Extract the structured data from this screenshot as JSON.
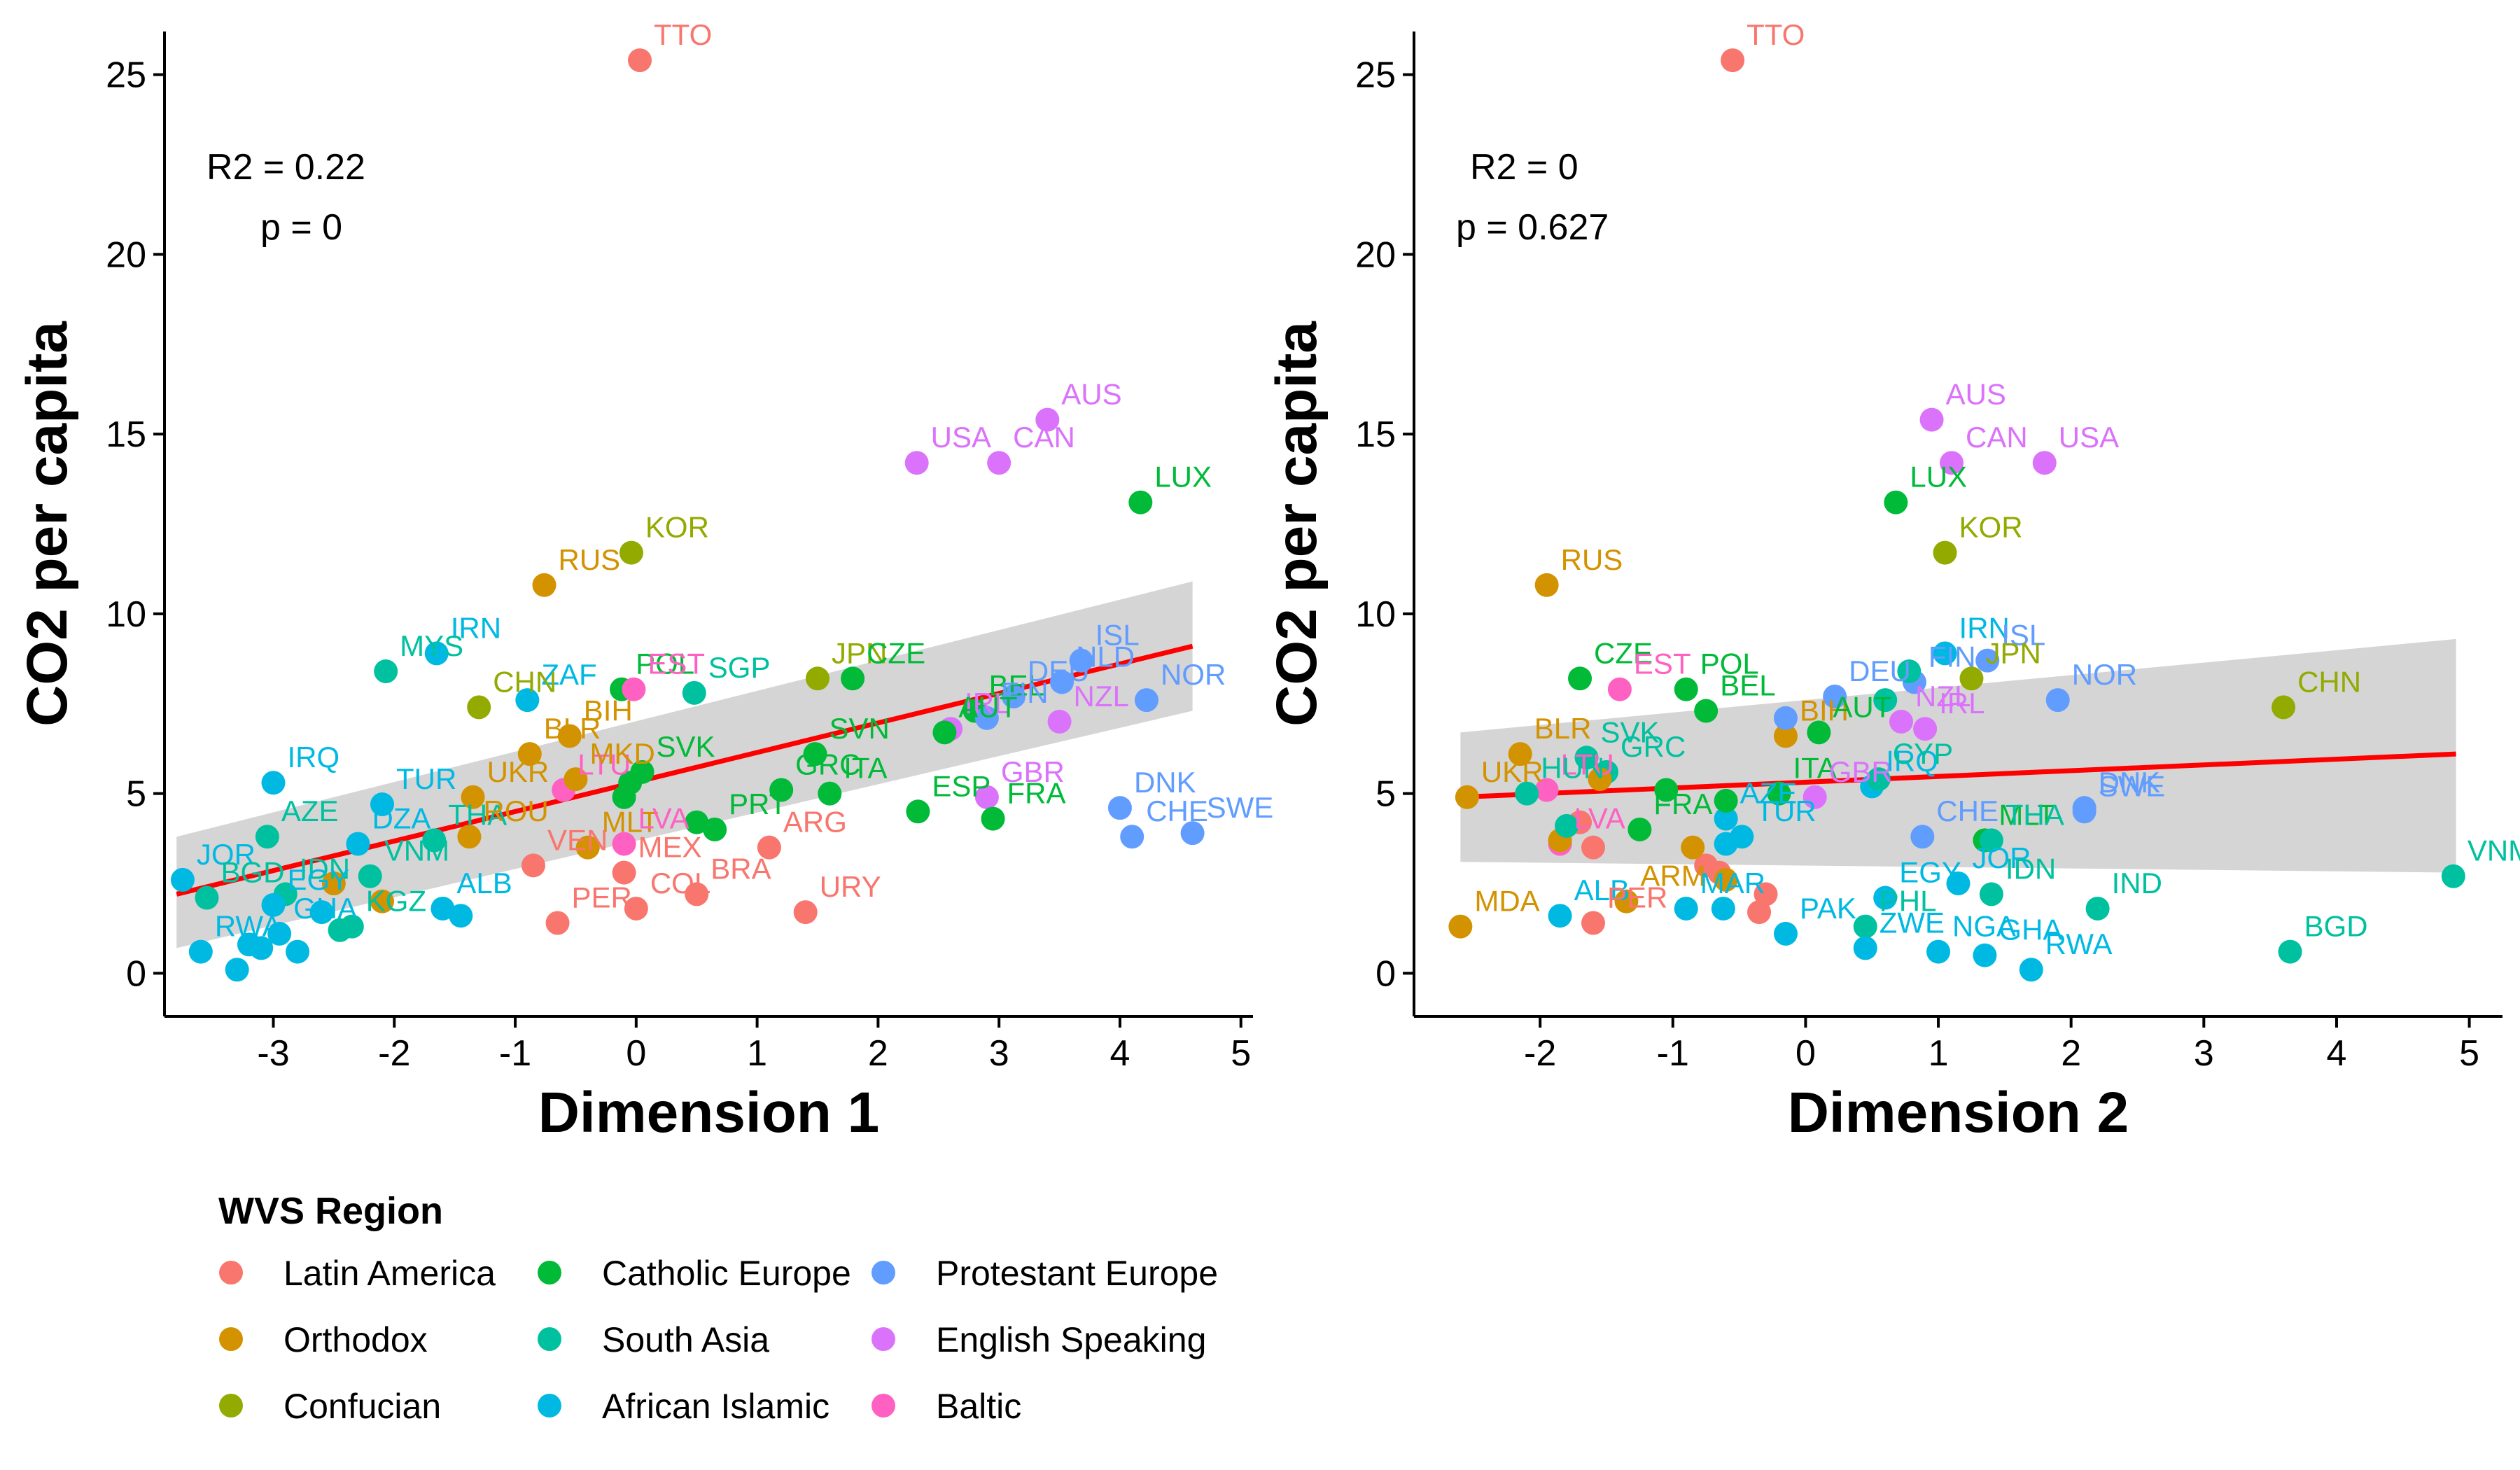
{
  "regions": [
    {
      "name": "Latin America",
      "color": "#F8766D"
    },
    {
      "name": "Orthodox",
      "color": "#D39200"
    },
    {
      "name": "Confucian",
      "color": "#93AA00"
    },
    {
      "name": "Catholic Europe",
      "color": "#00BA38"
    },
    {
      "name": "South Asia",
      "color": "#00C19F"
    },
    {
      "name": "African Islamic",
      "color": "#00B9E3"
    },
    {
      "name": "Protestant Europe",
      "color": "#619CFF"
    },
    {
      "name": "English Speaking",
      "color": "#DB72FB"
    },
    {
      "name": "Baltic",
      "color": "#FF61C3"
    }
  ],
  "legend": {
    "title": "WVS Region",
    "position": "bottom-left"
  },
  "chart_data": [
    {
      "type": "scatter",
      "xlabel": "Dimension 1",
      "ylabel": "CO2 per capita",
      "xlim": [
        -3.9,
        5.1
      ],
      "ylim": [
        -1.2,
        26.2
      ],
      "xticks": [
        -3,
        -2,
        -1,
        0,
        1,
        2,
        3,
        4,
        5
      ],
      "yticks": [
        0,
        5,
        10,
        15,
        20,
        25
      ],
      "stats": {
        "r2_label": "R2 = ",
        "r2": "0.22",
        "p_label": "p = ",
        "p": "0"
      },
      "trend": {
        "x": [
          -3.8,
          4.6
        ],
        "y": [
          2.2,
          9.1
        ],
        "band_upper": [
          3.8,
          10.9
        ],
        "band_lower": [
          0.7,
          7.3
        ]
      },
      "points": [
        {
          "label": "TTO",
          "region": 0,
          "x": 0.03,
          "y": 25.4
        },
        {
          "label": "USA",
          "region": 7,
          "x": 2.32,
          "y": 14.2
        },
        {
          "label": "AUS",
          "region": 7,
          "x": 3.4,
          "y": 15.4
        },
        {
          "label": "CAN",
          "region": 7,
          "x": 3.0,
          "y": 14.2
        },
        {
          "label": "LUX",
          "region": 3,
          "x": 4.17,
          "y": 13.1
        },
        {
          "label": "KOR",
          "region": 2,
          "x": -0.04,
          "y": 11.7
        },
        {
          "label": "RUS",
          "region": 1,
          "x": -0.76,
          "y": 10.8
        },
        {
          "label": "IRN",
          "region": 5,
          "x": -1.65,
          "y": 8.9
        },
        {
          "label": "MYS",
          "region": 4,
          "x": -2.07,
          "y": 8.4
        },
        {
          "label": "ZAF",
          "region": 5,
          "x": -0.9,
          "y": 7.6
        },
        {
          "label": "POL",
          "region": 3,
          "x": -0.12,
          "y": 7.9
        },
        {
          "label": "SGP",
          "region": 4,
          "x": 0.48,
          "y": 7.8
        },
        {
          "label": "EST",
          "region": 8,
          "x": -0.02,
          "y": 7.9
        },
        {
          "label": "JPN",
          "region": 2,
          "x": 1.5,
          "y": 8.2
        },
        {
          "label": "CZE",
          "region": 3,
          "x": 1.79,
          "y": 8.2
        },
        {
          "label": "BEL",
          "region": 3,
          "x": 2.8,
          "y": 7.3
        },
        {
          "label": "DEU",
          "region": 6,
          "x": 3.12,
          "y": 7.7
        },
        {
          "label": "ISL",
          "region": 6,
          "x": 3.68,
          "y": 8.7
        },
        {
          "label": "NLD",
          "region": 6,
          "x": 3.52,
          "y": 8.1
        },
        {
          "label": "NOR",
          "region": 6,
          "x": 4.22,
          "y": 7.6
        },
        {
          "label": "NZL",
          "region": 7,
          "x": 3.5,
          "y": 7.0
        },
        {
          "label": "FIN",
          "region": 6,
          "x": 2.9,
          "y": 7.1
        },
        {
          "label": "IRL",
          "region": 7,
          "x": 2.6,
          "y": 6.8
        },
        {
          "label": "AUT",
          "region": 3,
          "x": 2.55,
          "y": 6.7
        },
        {
          "label": "SVN",
          "region": 3,
          "x": 1.48,
          "y": 6.1
        },
        {
          "label": "CHN",
          "region": 2,
          "x": -1.3,
          "y": 7.4
        },
        {
          "label": "BLR",
          "region": 1,
          "x": -0.88,
          "y": 6.1
        },
        {
          "label": "BIH",
          "region": 1,
          "x": -0.55,
          "y": 6.6
        },
        {
          "label": "TUR",
          "region": 5,
          "x": -2.1,
          "y": 4.7
        },
        {
          "label": "UKR",
          "region": 1,
          "x": -1.35,
          "y": 4.9
        },
        {
          "label": "LTU",
          "region": 8,
          "x": -0.6,
          "y": 5.1
        },
        {
          "label": "SVK",
          "region": 3,
          "x": 0.05,
          "y": 5.6
        },
        {
          "label": "MKD",
          "region": 1,
          "x": -0.5,
          "y": 5.4
        },
        {
          "label": "IRQ",
          "region": 5,
          "x": -3.0,
          "y": 5.3
        },
        {
          "label": "DZA",
          "region": 5,
          "x": -2.3,
          "y": 3.6
        },
        {
          "label": "AZE",
          "region": 4,
          "x": -3.05,
          "y": 3.8
        },
        {
          "label": "THA",
          "region": 4,
          "x": -1.67,
          "y": 3.7
        },
        {
          "label": "VNM",
          "region": 4,
          "x": -2.2,
          "y": 2.7
        },
        {
          "label": "MLT",
          "region": 1,
          "x": -0.4,
          "y": 3.5
        },
        {
          "label": "ROU",
          "region": 1,
          "x": -1.38,
          "y": 3.8
        },
        {
          "label": "GRC",
          "region": 3,
          "x": 1.2,
          "y": 5.1
        },
        {
          "label": "ITA",
          "region": 3,
          "x": 1.6,
          "y": 5.0
        },
        {
          "label": "GBR",
          "region": 7,
          "x": 2.9,
          "y": 4.9
        },
        {
          "label": "DNK",
          "region": 6,
          "x": 4.0,
          "y": 4.6
        },
        {
          "label": "SWE",
          "region": 6,
          "x": 4.6,
          "y": 3.9
        },
        {
          "label": "CHE",
          "region": 6,
          "x": 4.1,
          "y": 3.8
        },
        {
          "label": "ESP",
          "region": 3,
          "x": 2.33,
          "y": 4.5
        },
        {
          "label": "FRA",
          "region": 3,
          "x": 2.95,
          "y": 4.3
        },
        {
          "label": "PRT",
          "region": 3,
          "x": 0.65,
          "y": 4.0
        },
        {
          "label": "ARG",
          "region": 0,
          "x": 1.1,
          "y": 3.5
        },
        {
          "label": "LVA",
          "region": 8,
          "x": -0.1,
          "y": 3.6
        },
        {
          "label": "JOR",
          "region": 5,
          "x": -3.75,
          "y": 2.6
        },
        {
          "label": "IDN",
          "region": 4,
          "x": -2.9,
          "y": 2.2
        },
        {
          "label": "KGZ",
          "region": 4,
          "x": -2.35,
          "y": 1.3
        },
        {
          "label": "BGD",
          "region": 4,
          "x": -3.55,
          "y": 2.1
        },
        {
          "label": "EGY",
          "region": 5,
          "x": -3.0,
          "y": 1.9
        },
        {
          "label": "VEN",
          "region": 0,
          "x": -0.85,
          "y": 3.0
        },
        {
          "label": "MEX",
          "region": 0,
          "x": -0.1,
          "y": 2.8
        },
        {
          "label": "BRA",
          "region": 0,
          "x": 0.5,
          "y": 2.2
        },
        {
          "label": "COL",
          "region": 0,
          "x": 0.0,
          "y": 1.8
        },
        {
          "label": "PER",
          "region": 0,
          "x": -0.65,
          "y": 1.4
        },
        {
          "label": "URY",
          "region": 0,
          "x": 1.4,
          "y": 1.7
        },
        {
          "label": "ALB",
          "region": 5,
          "x": -1.6,
          "y": 1.8
        },
        {
          "label": "RWA",
          "region": 5,
          "x": -3.6,
          "y": 0.6
        },
        {
          "label": "GHA",
          "region": 5,
          "x": -2.95,
          "y": 1.1
        },
        {
          "label": "",
          "region": 4,
          "x": -2.45,
          "y": 1.2
        },
        {
          "label": "",
          "region": 5,
          "x": -2.6,
          "y": 1.7
        },
        {
          "label": "",
          "region": 5,
          "x": -1.45,
          "y": 1.6
        },
        {
          "label": "",
          "region": 5,
          "x": -3.2,
          "y": 0.8
        },
        {
          "label": "",
          "region": 5,
          "x": -3.1,
          "y": 0.7
        },
        {
          "label": "",
          "region": 5,
          "x": -2.8,
          "y": 0.6
        },
        {
          "label": "",
          "region": 5,
          "x": -3.3,
          "y": 0.1
        },
        {
          "label": "",
          "region": 1,
          "x": -2.5,
          "y": 2.5
        },
        {
          "label": "",
          "region": 1,
          "x": -2.1,
          "y": 2.0
        },
        {
          "label": "",
          "region": 3,
          "x": -0.05,
          "y": 5.3
        },
        {
          "label": "",
          "region": 3,
          "x": -0.1,
          "y": 4.9
        },
        {
          "label": "",
          "region": 3,
          "x": 0.5,
          "y": 4.2
        }
      ]
    },
    {
      "type": "scatter",
      "xlabel": "Dimension 2",
      "ylabel": "CO2 per capita",
      "xlim": [
        -2.95,
        5.25
      ],
      "ylim": [
        -1.2,
        26.2
      ],
      "xticks": [
        -2,
        -1,
        0,
        1,
        2,
        3,
        4,
        5
      ],
      "yticks": [
        0,
        5,
        10,
        15,
        20,
        25
      ],
      "stats": {
        "r2_label": "R2 = ",
        "r2": "0",
        "p_label": "p = ",
        "p": "0.627"
      },
      "trend": {
        "x": [
          -2.6,
          4.9
        ],
        "y": [
          4.9,
          6.1
        ],
        "band_upper": [
          6.7,
          9.3
        ],
        "band_lower": [
          3.1,
          2.8
        ]
      },
      "points": [
        {
          "label": "TTO",
          "region": 0,
          "x": -0.55,
          "y": 25.4
        },
        {
          "label": "AUS",
          "region": 7,
          "x": 0.95,
          "y": 15.4
        },
        {
          "label": "CAN",
          "region": 7,
          "x": 1.1,
          "y": 14.2
        },
        {
          "label": "USA",
          "region": 7,
          "x": 1.8,
          "y": 14.2
        },
        {
          "label": "LUX",
          "region": 3,
          "x": 0.68,
          "y": 13.1
        },
        {
          "label": "KOR",
          "region": 2,
          "x": 1.05,
          "y": 11.7
        },
        {
          "label": "RUS",
          "region": 1,
          "x": -1.95,
          "y": 10.8
        },
        {
          "label": "IRN",
          "region": 5,
          "x": 1.05,
          "y": 8.9
        },
        {
          "label": "ISL",
          "region": 6,
          "x": 1.37,
          "y": 8.7
        },
        {
          "label": "CZE",
          "region": 3,
          "x": -1.7,
          "y": 8.2
        },
        {
          "label": "POL",
          "region": 3,
          "x": -0.9,
          "y": 7.9
        },
        {
          "label": "EST",
          "region": 8,
          "x": -1.4,
          "y": 7.9
        },
        {
          "label": "FIN",
          "region": 6,
          "x": 0.82,
          "y": 8.1
        },
        {
          "label": "DEU",
          "region": 6,
          "x": 0.22,
          "y": 7.7
        },
        {
          "label": "JPN",
          "region": 2,
          "x": 1.25,
          "y": 8.2
        },
        {
          "label": "NOR",
          "region": 6,
          "x": 1.9,
          "y": 7.6
        },
        {
          "label": "BEL",
          "region": 3,
          "x": -0.75,
          "y": 7.3
        },
        {
          "label": "NZL",
          "region": 7,
          "x": 0.72,
          "y": 7.0
        },
        {
          "label": "IRL",
          "region": 7,
          "x": 0.9,
          "y": 6.8
        },
        {
          "label": "CHN",
          "region": 2,
          "x": 3.6,
          "y": 7.4
        },
        {
          "label": "BLR",
          "region": 1,
          "x": -2.15,
          "y": 6.1
        },
        {
          "label": "SVK",
          "region": 4,
          "x": -1.65,
          "y": 6.0
        },
        {
          "label": "BIH",
          "region": 1,
          "x": -0.15,
          "y": 6.6
        },
        {
          "label": "AUT",
          "region": 3,
          "x": 0.1,
          "y": 6.7
        },
        {
          "label": "GRC",
          "region": 4,
          "x": -1.5,
          "y": 5.6
        },
        {
          "label": "UKR",
          "region": 1,
          "x": -2.55,
          "y": 4.9
        },
        {
          "label": "LTU",
          "region": 8,
          "x": -1.95,
          "y": 5.1
        },
        {
          "label": "HUN",
          "region": 4,
          "x": -2.1,
          "y": 5.0
        },
        {
          "label": "ITA",
          "region": 3,
          "x": -0.2,
          "y": 5.0
        },
        {
          "label": "GBR",
          "region": 7,
          "x": 0.07,
          "y": 4.9
        },
        {
          "label": "IRQ",
          "region": 5,
          "x": 0.5,
          "y": 5.2
        },
        {
          "label": "CYP",
          "region": 4,
          "x": 0.55,
          "y": 5.4
        },
        {
          "label": "DNK",
          "region": 6,
          "x": 2.1,
          "y": 4.6
        },
        {
          "label": "SWE",
          "region": 6,
          "x": 2.1,
          "y": 4.5
        },
        {
          "label": "CHE",
          "region": 6,
          "x": 0.88,
          "y": 3.8
        },
        {
          "label": "FRA",
          "region": 3,
          "x": -1.25,
          "y": 4.0
        },
        {
          "label": "AZE",
          "region": 5,
          "x": -0.6,
          "y": 4.3
        },
        {
          "label": "TUR",
          "region": 5,
          "x": -0.48,
          "y": 3.8
        },
        {
          "label": "MLT",
          "region": 3,
          "x": 1.35,
          "y": 3.7
        },
        {
          "label": "THA",
          "region": 4,
          "x": 1.4,
          "y": 3.7
        },
        {
          "label": "LVA",
          "region": 8,
          "x": -1.85,
          "y": 3.6
        },
        {
          "label": "ARM",
          "region": 1,
          "x": -1.35,
          "y": 2.0
        },
        {
          "label": "EGY",
          "region": 5,
          "x": 0.6,
          "y": 2.1
        },
        {
          "label": "JOR",
          "region": 5,
          "x": 1.15,
          "y": 2.5
        },
        {
          "label": "IDN",
          "region": 4,
          "x": 1.4,
          "y": 2.2
        },
        {
          "label": "IND",
          "region": 4,
          "x": 2.2,
          "y": 1.8
        },
        {
          "label": "VNM",
          "region": 4,
          "x": 4.88,
          "y": 2.7
        },
        {
          "label": "ALB",
          "region": 5,
          "x": -1.85,
          "y": 1.6
        },
        {
          "label": "PER",
          "region": 0,
          "x": -1.6,
          "y": 1.4
        },
        {
          "label": "MDA",
          "region": 1,
          "x": -2.6,
          "y": 1.3
        },
        {
          "label": "MAR",
          "region": 5,
          "x": -0.9,
          "y": 1.8
        },
        {
          "label": "PHL",
          "region": 4,
          "x": 0.45,
          "y": 1.3
        },
        {
          "label": "PAK",
          "region": 5,
          "x": -0.15,
          "y": 1.1
        },
        {
          "label": "ZWE",
          "region": 5,
          "x": 0.45,
          "y": 0.7
        },
        {
          "label": "NGA",
          "region": 5,
          "x": 1.0,
          "y": 0.6
        },
        {
          "label": "GHA",
          "region": 5,
          "x": 1.35,
          "y": 0.5
        },
        {
          "label": "RWA",
          "region": 5,
          "x": 1.7,
          "y": 0.1
        },
        {
          "label": "BGD",
          "region": 4,
          "x": 3.65,
          "y": 0.6
        },
        {
          "label": "",
          "region": 1,
          "x": -1.85,
          "y": 3.7
        },
        {
          "label": "",
          "region": 0,
          "x": -1.6,
          "y": 3.5
        },
        {
          "label": "",
          "region": 0,
          "x": -0.75,
          "y": 3.0
        },
        {
          "label": "",
          "region": 0,
          "x": -0.65,
          "y": 2.8
        },
        {
          "label": "",
          "region": 0,
          "x": -0.35,
          "y": 1.7
        },
        {
          "label": "",
          "region": 0,
          "x": -0.3,
          "y": 2.2
        },
        {
          "label": "",
          "region": 0,
          "x": -1.7,
          "y": 4.2
        },
        {
          "label": "",
          "region": 1,
          "x": -1.55,
          "y": 5.4
        },
        {
          "label": "",
          "region": 1,
          "x": -0.6,
          "y": 2.6
        },
        {
          "label": "",
          "region": 1,
          "x": -0.85,
          "y": 3.5
        },
        {
          "label": "",
          "region": 3,
          "x": -1.05,
          "y": 5.1
        },
        {
          "label": "",
          "region": 3,
          "x": -0.6,
          "y": 4.8
        },
        {
          "label": "",
          "region": 5,
          "x": -0.6,
          "y": 3.6
        },
        {
          "label": "",
          "region": 4,
          "x": -1.8,
          "y": 4.1
        },
        {
          "label": "",
          "region": 5,
          "x": -0.62,
          "y": 1.8
        },
        {
          "label": "",
          "region": 4,
          "x": 0.6,
          "y": 7.6
        },
        {
          "label": "",
          "region": 4,
          "x": 0.78,
          "y": 8.4
        },
        {
          "label": "",
          "region": 6,
          "x": -0.15,
          "y": 7.1
        }
      ]
    }
  ]
}
